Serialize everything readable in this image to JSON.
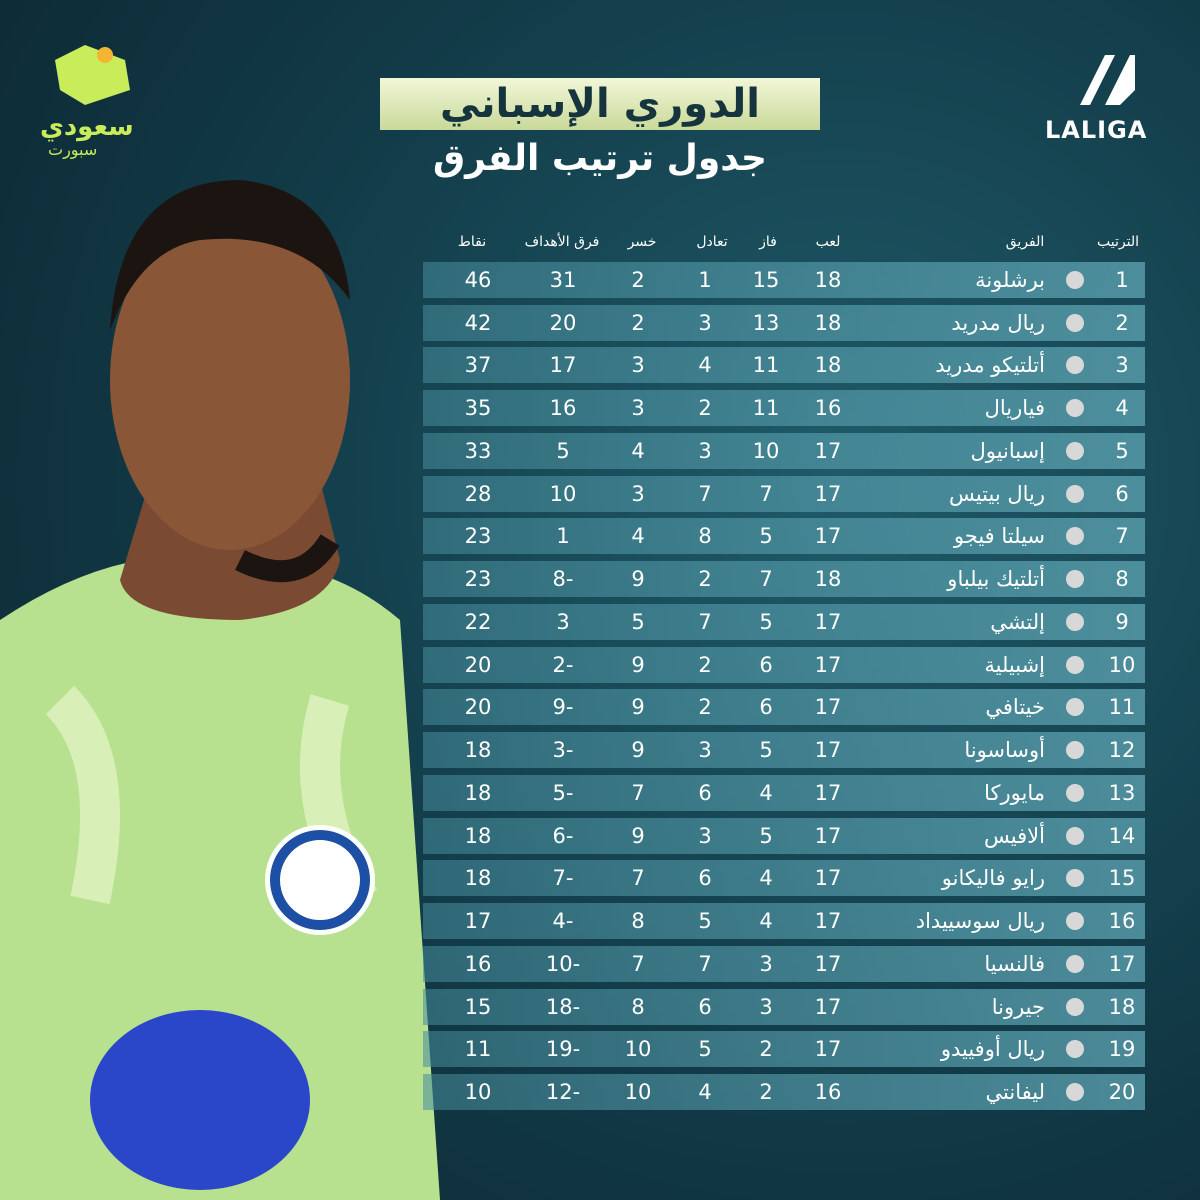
{
  "header": {
    "title": "الدوري الإسباني",
    "subtitle": "جدول ترتيب الفرق",
    "league_logo": "LALIGA",
    "site_logo": "سعودي",
    "site_logo_sub": "سبورت"
  },
  "table": {
    "columns": [
      "الترتيب",
      "الفريق",
      "لعب",
      "فاز",
      "تعادل",
      "خسر",
      "فرق الأهداف",
      "نقاط"
    ],
    "rows": [
      [
        1,
        "برشلونة",
        18,
        15,
        1,
        2,
        31,
        46
      ],
      [
        2,
        "ريال مدريد",
        18,
        13,
        3,
        2,
        20,
        42
      ],
      [
        3,
        "أتلتيكو مدريد",
        18,
        11,
        4,
        3,
        17,
        37
      ],
      [
        4,
        "فياريال",
        16,
        11,
        2,
        3,
        16,
        35
      ],
      [
        5,
        "إسبانيول",
        17,
        10,
        3,
        4,
        5,
        33
      ],
      [
        6,
        "ريال بيتيس",
        17,
        7,
        7,
        3,
        10,
        28
      ],
      [
        7,
        "سيلتا فيجو",
        17,
        5,
        8,
        4,
        1,
        23
      ],
      [
        8,
        "أتلتيك بيلباو",
        18,
        7,
        2,
        9,
        "8-",
        23
      ],
      [
        9,
        "إلتشي",
        17,
        5,
        7,
        5,
        3,
        22
      ],
      [
        10,
        "إشبيلية",
        17,
        6,
        2,
        9,
        "2-",
        20
      ],
      [
        11,
        "خيتافي",
        17,
        6,
        2,
        9,
        "9-",
        20
      ],
      [
        12,
        "أوساسونا",
        17,
        5,
        3,
        9,
        "3-",
        18
      ],
      [
        13,
        "مايوركا",
        17,
        4,
        6,
        7,
        "5-",
        18
      ],
      [
        14,
        "ألافيس",
        17,
        5,
        3,
        9,
        "6-",
        18
      ],
      [
        15,
        "رايو فاليكانو",
        17,
        4,
        6,
        7,
        "7-",
        18
      ],
      [
        16,
        "ريال سوسييداد",
        17,
        4,
        5,
        8,
        "4-",
        17
      ],
      [
        17,
        "فالنسيا",
        17,
        3,
        7,
        7,
        "10-",
        16
      ],
      [
        18,
        "جيرونا",
        17,
        3,
        6,
        8,
        "18-",
        15
      ],
      [
        19,
        "ريال أوفييدو",
        17,
        2,
        5,
        10,
        "19-",
        11
      ],
      [
        20,
        "ليفانتي",
        16,
        2,
        4,
        10,
        "12-",
        10
      ]
    ]
  }
}
